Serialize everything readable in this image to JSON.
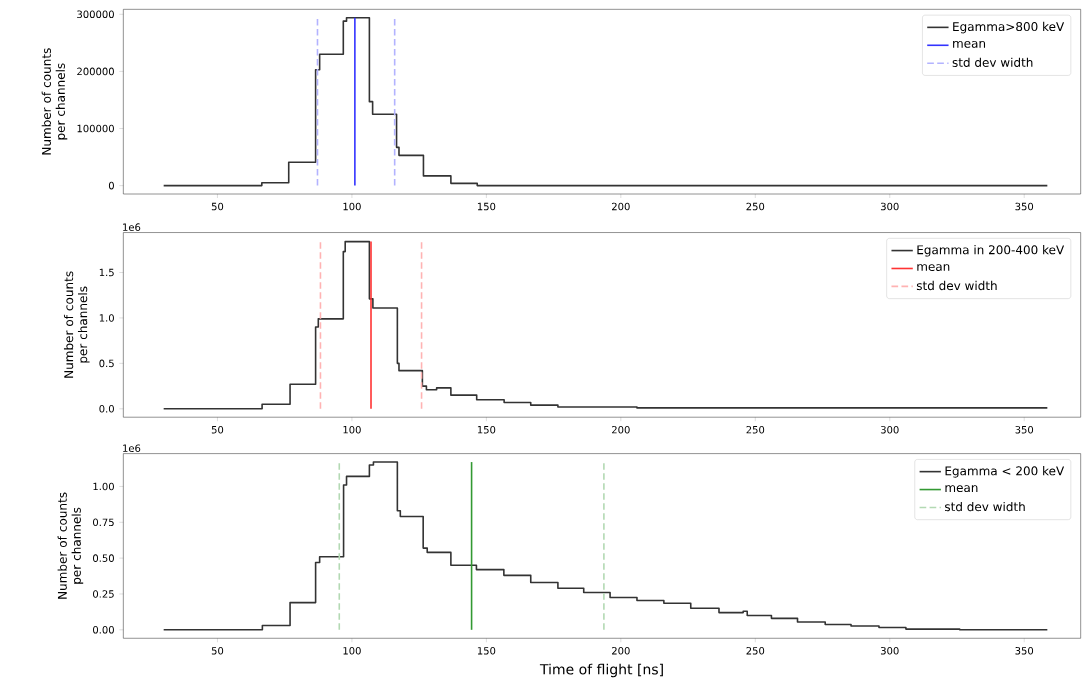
{
  "chart_data": [
    {
      "type": "step",
      "ylabel": "Number of counts per channels",
      "xlim": [
        15,
        371
      ],
      "xticks": [
        50,
        100,
        150,
        200,
        250,
        300,
        350
      ],
      "ylim": [
        -14700,
        308700
      ],
      "yticks": [
        0,
        100000,
        200000,
        300000
      ],
      "legend": "top right",
      "series": [
        {
          "name": "Egamma>800 keV",
          "color": "#333333",
          "x": [
            30,
            66.5,
            76.5,
            86.5,
            88,
            96.8,
            98,
            106.5,
            107.7,
            116.6,
            117.5,
            126.6,
            136.8,
            146.6,
            358.6
          ],
          "values": [
            0,
            5000,
            41000,
            203000,
            230000,
            288000,
            294000,
            147000,
            125000,
            67000,
            53000,
            17000,
            4000,
            0,
            0
          ]
        },
        {
          "name": "mean",
          "type": "line",
          "color": "#3333ff",
          "x": [
            101.1,
            101.1
          ],
          "values": [
            0,
            294000
          ]
        },
        {
          "name": "std dev width",
          "type": "line",
          "line_style": "dashed",
          "color": "#b3b3ff",
          "x": [
            87.2,
            87.2,
            null,
            115.9,
            115.9
          ],
          "values": [
            0,
            294000,
            null,
            0,
            294000
          ]
        }
      ]
    },
    {
      "type": "step",
      "ylabel": "Number of counts per channels",
      "annotations": [
        "1e6"
      ],
      "xlim": [
        15,
        371
      ],
      "xticks": [
        50,
        100,
        150,
        200,
        250,
        300,
        350
      ],
      "ylim": [
        -0.0925,
        1.94
      ],
      "yticks": [
        {
          "value": 0,
          "label": "0.0"
        },
        {
          "value": 0.5,
          "label": "0.5"
        },
        {
          "value": 1,
          "label": "1.0"
        },
        {
          "value": 1.5,
          "label": "1.5"
        }
      ],
      "legend": "top right",
      "series": [
        {
          "name": "Egamma in 200-400 keV",
          "color": "#333333",
          "x": [
            30,
            66.6,
            77,
            86.5,
            87.5,
            96.8,
            97.5,
            106.5,
            107.8,
            116.9,
            117.5,
            126.2,
            127.7,
            131.5,
            136.8,
            146.4,
            156.6,
            166.5,
            176.6,
            206,
            358.6
          ],
          "values": [
            0,
            0.05,
            0.27,
            0.9,
            0.99,
            1.73,
            1.84,
            1.21,
            1.11,
            0.5,
            0.42,
            0.25,
            0.21,
            0.23,
            0.15,
            0.1,
            0.07,
            0.04,
            0.02,
            0.01,
            0.01
          ]
        },
        {
          "name": "mean",
          "type": "line",
          "color": "#ff3333",
          "x": [
            107.1,
            107.1
          ],
          "values": [
            0,
            1.84
          ]
        },
        {
          "name": "std dev width",
          "type": "line",
          "line_style": "dashed",
          "color": "#ffb3b3",
          "x": [
            88.3,
            88.3,
            null,
            125.9,
            125.9
          ],
          "values": [
            0,
            1.84,
            null,
            0,
            1.84
          ]
        }
      ]
    },
    {
      "type": "step",
      "xlabel": "Time of flight [ns]",
      "ylabel": "Number of counts per channels",
      "annotations": [
        "1e6"
      ],
      "xlim": [
        15,
        371
      ],
      "xticks": [
        50,
        100,
        150,
        200,
        250,
        300,
        350
      ],
      "ylim": [
        -0.059,
        1.229
      ],
      "yticks": [
        {
          "value": 0,
          "label": "0.00"
        },
        {
          "value": 0.25,
          "label": "0.25"
        },
        {
          "value": 0.5,
          "label": "0.50"
        },
        {
          "value": 0.75,
          "label": "0.75"
        },
        {
          "value": 1,
          "label": "1.00"
        }
      ],
      "legend": "top right",
      "series": [
        {
          "name": "Egamma < 200 keV",
          "color": "#333333",
          "x": [
            30,
            66.7,
            77,
            86.5,
            88,
            96.9,
            98,
            106.5,
            108,
            116.9,
            118,
            126.5,
            128,
            136.8,
            146.3,
            156.5,
            166.5,
            176.6,
            186.2,
            196,
            206,
            216,
            226,
            236.5,
            245.5,
            247,
            256,
            265.7,
            276,
            285.6,
            296,
            306,
            326,
            358.6
          ],
          "values": [
            0,
            0.03,
            0.19,
            0.47,
            0.51,
            1.01,
            1.07,
            1.15,
            1.17,
            0.83,
            0.79,
            0.57,
            0.54,
            0.45,
            0.42,
            0.38,
            0.33,
            0.29,
            0.26,
            0.225,
            0.205,
            0.185,
            0.15,
            0.12,
            0.13,
            0.1,
            0.08,
            0.055,
            0.037,
            0.027,
            0.016,
            0.005,
            0,
            0
          ]
        },
        {
          "name": "mean",
          "type": "line",
          "color": "#339933",
          "x": [
            144.5,
            144.5
          ],
          "values": [
            0,
            1.17
          ]
        },
        {
          "name": "std dev width",
          "type": "line",
          "line_style": "dashed",
          "color": "#b3d9b3",
          "x": [
            95.3,
            95.3,
            null,
            193.7,
            193.7
          ],
          "values": [
            0,
            1.17,
            null,
            0,
            1.17
          ]
        }
      ]
    }
  ]
}
